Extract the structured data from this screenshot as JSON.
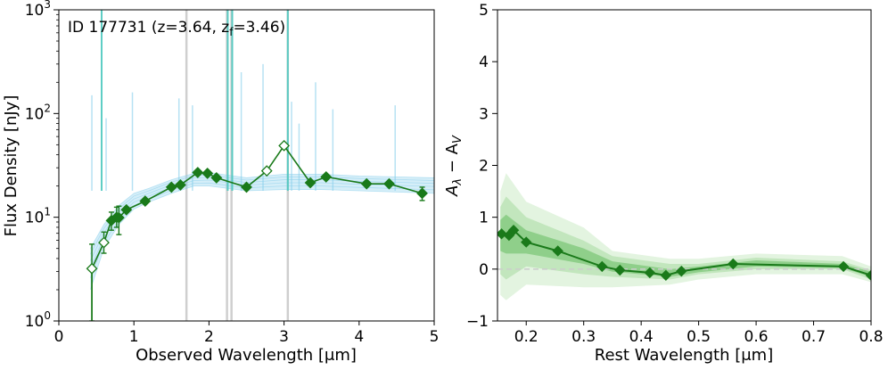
{
  "chart_data": [
    {
      "type": "line",
      "annotation": {
        "id": "ID 177731",
        "z_text": "(z=3.64, z",
        "zf_sub": "f",
        "zf_text": "=3.46)"
      },
      "xlabel": "Observed Wavelength [μm]",
      "ylabel": "Flux Density [nJy]",
      "xlim": [
        0,
        5
      ],
      "ylim": [
        1,
        1000
      ],
      "yscale": "log",
      "xticks": [
        "0",
        "1",
        "2",
        "3",
        "4",
        "5"
      ],
      "yticks": [
        {
          "base": "10",
          "exp": "0"
        },
        {
          "base": "10",
          "exp": "1"
        },
        {
          "base": "10",
          "exp": "2"
        },
        {
          "base": "10",
          "exp": "3"
        }
      ],
      "series": [
        {
          "name": "photometry",
          "color": "#1a7a1a",
          "points": [
            {
              "x": 0.44,
              "y": 3.2,
              "err": [
                1.0,
                5.5
              ],
              "open": true
            },
            {
              "x": 0.6,
              "y": 5.7,
              "err": [
                4.5,
                7.2
              ],
              "open": true
            },
            {
              "x": 0.7,
              "y": 9.3,
              "err": [
                7.5,
                11.2
              ],
              "open": false
            },
            {
              "x": 0.77,
              "y": 10.0,
              "err": [
                8.0,
                12.5
              ],
              "open": false
            },
            {
              "x": 0.8,
              "y": 9.9,
              "err": [
                6.8,
                12.8
              ],
              "open": false
            },
            {
              "x": 0.9,
              "y": 11.8,
              "err": null,
              "open": false
            },
            {
              "x": 1.15,
              "y": 14.3,
              "err": null,
              "open": false
            },
            {
              "x": 1.5,
              "y": 19.5,
              "err": null,
              "open": false
            },
            {
              "x": 1.62,
              "y": 20.5,
              "err": null,
              "open": false
            },
            {
              "x": 1.85,
              "y": 27.0,
              "err": null,
              "open": false
            },
            {
              "x": 1.98,
              "y": 26.5,
              "err": null,
              "open": false
            },
            {
              "x": 2.1,
              "y": 24.0,
              "err": null,
              "open": false
            },
            {
              "x": 2.5,
              "y": 19.5,
              "err": null,
              "open": false
            },
            {
              "x": 2.77,
              "y": 28.0,
              "err": null,
              "open": true
            },
            {
              "x": 3.0,
              "y": 49.0,
              "err": null,
              "open": true
            },
            {
              "x": 3.35,
              "y": 21.5,
              "err": null,
              "open": false
            },
            {
              "x": 3.56,
              "y": 24.5,
              "err": null,
              "open": false
            },
            {
              "x": 4.1,
              "y": 21.0,
              "err": null,
              "open": false
            },
            {
              "x": 4.4,
              "y": 21.0,
              "err": null,
              "open": false
            },
            {
              "x": 4.84,
              "y": 17.0,
              "err": [
                14.5,
                19.5
              ],
              "open": false
            }
          ]
        }
      ],
      "sed_model_color": "#87ceeb",
      "sed_model_envelope": {
        "x": [
          0.42,
          0.6,
          0.8,
          1.0,
          1.2,
          1.5,
          1.8,
          2.0,
          2.5,
          3.0,
          3.5,
          4.0,
          4.5,
          5.0
        ],
        "lower": [
          2.0,
          5.0,
          8.5,
          12.0,
          14.0,
          17.0,
          20.0,
          20.0,
          18.0,
          18.5,
          18.5,
          18.0,
          17.5,
          17.0
        ],
        "upper": [
          5.0,
          8.5,
          13.0,
          17.0,
          19.0,
          23.0,
          26.5,
          27.0,
          24.0,
          26.0,
          26.0,
          25.0,
          24.5,
          24.0
        ]
      },
      "emission_lines": [
        {
          "x": 0.57,
          "top": 1000,
          "teal": true
        },
        {
          "x": 0.44,
          "top": 150
        },
        {
          "x": 0.63,
          "top": 90
        },
        {
          "x": 0.98,
          "top": 160
        },
        {
          "x": 1.6,
          "top": 140
        },
        {
          "x": 1.78,
          "top": 120
        },
        {
          "x": 2.25,
          "top": 1000,
          "teal": true
        },
        {
          "x": 2.31,
          "top": 1000,
          "teal": true
        },
        {
          "x": 2.43,
          "top": 250
        },
        {
          "x": 2.72,
          "top": 300
        },
        {
          "x": 3.05,
          "top": 1000,
          "teal": true
        },
        {
          "x": 3.1,
          "top": 130
        },
        {
          "x": 3.2,
          "top": 80
        },
        {
          "x": 3.42,
          "top": 200
        },
        {
          "x": 3.65,
          "top": 110
        },
        {
          "x": 4.48,
          "top": 120
        }
      ],
      "gray_bands": [
        1.7,
        2.24,
        2.3,
        3.05
      ]
    },
    {
      "type": "line",
      "xlabel": "Rest Wavelength [μm]",
      "ylabel_main": "A",
      "ylabel_sub1": "λ",
      "ylabel_mid": " − A",
      "ylabel_sub2": "V",
      "xlim": [
        0.15,
        0.8
      ],
      "ylim": [
        -1,
        5
      ],
      "xticks": [
        "0.2",
        "0.3",
        "0.4",
        "0.5",
        "0.6",
        "0.7",
        "0.8"
      ],
      "yticks": [
        "−1",
        "0",
        "1",
        "2",
        "3",
        "4",
        "5"
      ],
      "series": [
        {
          "name": "attenuation curve",
          "color": "#1a7a1a",
          "x": [
            0.157,
            0.17,
            0.178,
            0.2,
            0.255,
            0.332,
            0.363,
            0.415,
            0.443,
            0.47,
            0.56,
            0.752,
            0.8
          ],
          "y": [
            0.68,
            0.65,
            0.75,
            0.52,
            0.35,
            0.05,
            -0.02,
            -0.07,
            -0.12,
            -0.04,
            0.1,
            0.05,
            -0.12
          ]
        }
      ],
      "bands": [
        {
          "color": "#e3f4e0",
          "x": [
            0.155,
            0.165,
            0.2,
            0.3,
            0.35,
            0.45,
            0.5,
            0.6,
            0.75,
            0.8
          ],
          "lower": [
            -0.5,
            -0.6,
            -0.3,
            -0.35,
            -0.35,
            -0.3,
            -0.2,
            -0.1,
            -0.1,
            -0.25
          ],
          "upper": [
            1.5,
            1.85,
            1.3,
            0.8,
            0.35,
            0.2,
            0.2,
            0.3,
            0.25,
            0.05
          ]
        },
        {
          "color": "#c2e6bd",
          "x": [
            0.155,
            0.165,
            0.2,
            0.3,
            0.35,
            0.45,
            0.5,
            0.6,
            0.75,
            0.8
          ],
          "lower": [
            -0.1,
            -0.2,
            0.05,
            -0.1,
            -0.15,
            -0.2,
            -0.1,
            0.0,
            0.0,
            -0.2
          ],
          "upper": [
            1.2,
            1.4,
            1.0,
            0.55,
            0.25,
            0.1,
            0.1,
            0.22,
            0.15,
            -0.02
          ]
        },
        {
          "color": "#8fcf8a",
          "x": [
            0.155,
            0.165,
            0.2,
            0.3,
            0.35,
            0.45,
            0.5,
            0.6,
            0.75,
            0.8
          ],
          "lower": [
            0.35,
            0.3,
            0.3,
            0.1,
            -0.05,
            -0.15,
            -0.06,
            0.05,
            0.02,
            -0.15
          ],
          "upper": [
            0.95,
            1.05,
            0.75,
            0.4,
            0.15,
            0.0,
            0.05,
            0.17,
            0.1,
            -0.05
          ]
        }
      ],
      "reference_line": {
        "y": 0,
        "color": "#cccccc"
      }
    }
  ]
}
